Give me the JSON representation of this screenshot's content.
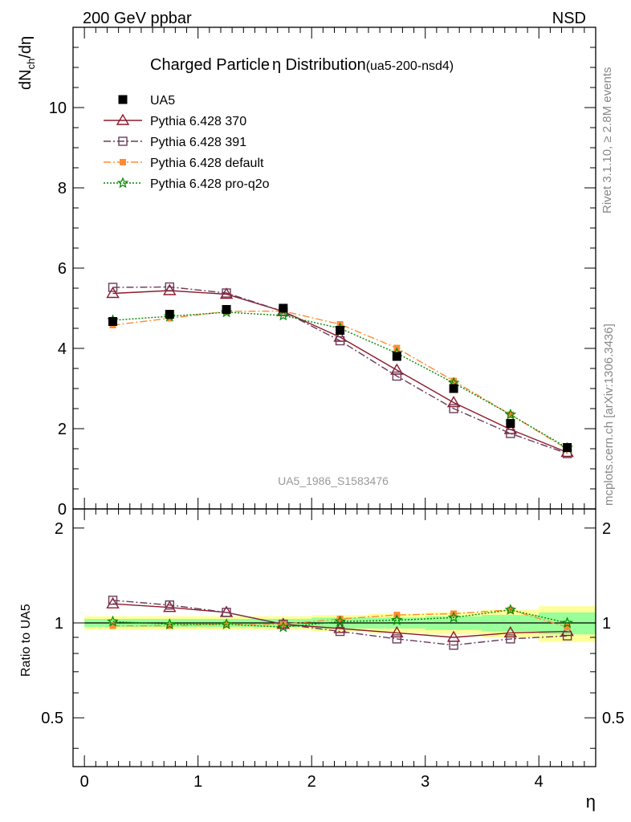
{
  "header": {
    "left": "200 GeV ppbar",
    "right": "NSD",
    "title_main": "Charged Particle",
    "title_eta": "η",
    "title_rest": " Distribution",
    "title_id": "(ua5-200-nsd4)",
    "watermark": "UA5_1986_S1583476",
    "side_rivet": "Rivet 3.1.10, ≥ 2.8M events",
    "side_mcplots": "mcplots.cern.ch [arXiv:1306.3436]"
  },
  "colors": {
    "data": "#000000",
    "p370": "#8b1a2b",
    "p391": "#6b3a5a",
    "pdefault": "#ff8c33",
    "pq2o": "#008800",
    "band_outer": "#ffff99",
    "band_inner": "#99ff99"
  },
  "chart_data": [
    {
      "type": "scatter",
      "xlabel": "η",
      "ylabel": "dN_ch/dη",
      "xlim": [
        -0.1,
        4.5
      ],
      "ylim": [
        0,
        12
      ],
      "yticks": [
        0,
        2,
        4,
        6,
        8,
        10
      ],
      "legend_position": "top-left",
      "x": [
        0.25,
        0.75,
        1.25,
        1.75,
        2.25,
        2.75,
        3.25,
        3.75,
        4.25
      ],
      "series": [
        {
          "name": "UA5",
          "key": "data",
          "marker": "filled-square",
          "line": "none",
          "values": [
            4.67,
            4.85,
            4.97,
            5.0,
            4.45,
            3.8,
            3.0,
            2.13,
            1.53
          ]
        },
        {
          "name": "Pythia 6.428 370",
          "key": "p370",
          "marker": "open-triangle",
          "line": "solid",
          "values": [
            5.37,
            5.44,
            5.35,
            4.92,
            4.28,
            3.46,
            2.65,
            1.98,
            1.41
          ]
        },
        {
          "name": "Pythia 6.428 391",
          "key": "p391",
          "marker": "open-square",
          "line": "dashdot",
          "values": [
            5.52,
            5.53,
            5.38,
            4.92,
            4.19,
            3.31,
            2.5,
            1.88,
            1.38
          ]
        },
        {
          "name": "Pythia 6.428 default",
          "key": "pdefault",
          "marker": "filled-square-small",
          "line": "dashdot",
          "values": [
            4.58,
            4.75,
            4.92,
            4.93,
            4.6,
            4.01,
            3.19,
            2.35,
            1.49
          ]
        },
        {
          "name": "Pythia 6.428 pro-q2o",
          "key": "pq2o",
          "marker": "star",
          "line": "dotted",
          "values": [
            4.7,
            4.8,
            4.9,
            4.82,
            4.5,
            3.88,
            3.14,
            2.35,
            1.52
          ]
        }
      ]
    },
    {
      "type": "scatter",
      "xlabel": "η",
      "ylabel": "Ratio to UA5",
      "xlim": [
        -0.1,
        4.5
      ],
      "ylim": [
        0.35,
        2.3
      ],
      "yticks": [
        0.5,
        1,
        2
      ],
      "ytick_labels": [
        "0.5",
        "1",
        "2"
      ],
      "xticks": [
        0,
        1,
        2,
        3,
        4
      ],
      "x": [
        0.25,
        0.75,
        1.25,
        1.75,
        2.25,
        2.75,
        3.25,
        3.75,
        4.25
      ],
      "bands": {
        "edges": [
          0,
          0.5,
          1.0,
          1.5,
          2.0,
          2.5,
          3.0,
          3.5,
          4.0,
          4.5
        ],
        "outer": [
          0.05,
          0.05,
          0.05,
          0.05,
          0.06,
          0.07,
          0.08,
          0.1,
          0.13
        ],
        "inner": [
          0.03,
          0.03,
          0.03,
          0.03,
          0.04,
          0.04,
          0.05,
          0.06,
          0.08
        ]
      },
      "series": [
        {
          "name": "Pythia 6.428 370",
          "key": "p370",
          "marker": "open-triangle",
          "line": "solid",
          "values": [
            1.15,
            1.12,
            1.08,
            0.99,
            0.96,
            0.93,
            0.9,
            0.93,
            0.94
          ]
        },
        {
          "name": "Pythia 6.428 391",
          "key": "p391",
          "marker": "open-square",
          "line": "dashdot",
          "values": [
            1.18,
            1.14,
            1.08,
            0.99,
            0.94,
            0.89,
            0.85,
            0.89,
            0.91
          ]
        },
        {
          "name": "Pythia 6.428 default",
          "key": "pdefault",
          "marker": "filled-square-small",
          "line": "dashdot",
          "values": [
            0.98,
            0.98,
            0.99,
            0.99,
            1.03,
            1.06,
            1.07,
            1.1,
            0.97
          ]
        },
        {
          "name": "Pythia 6.428 pro-q2o",
          "key": "pq2o",
          "marker": "star",
          "line": "dotted",
          "values": [
            1.01,
            0.99,
            0.99,
            0.97,
            1.01,
            1.02,
            1.04,
            1.1,
            1.0
          ]
        }
      ]
    }
  ]
}
